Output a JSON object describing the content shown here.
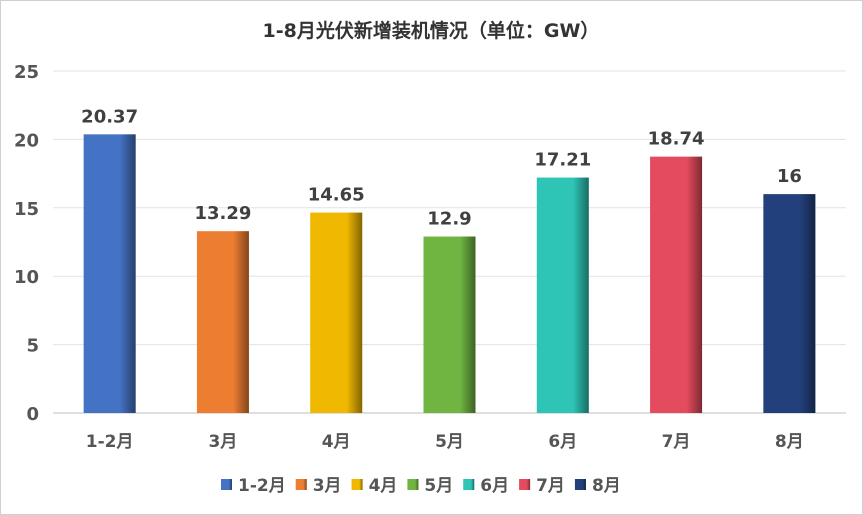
{
  "chart_data": {
    "type": "bar",
    "title": "1-8月光伏新增装机情况（单位：GW）",
    "categories": [
      "1-2月",
      "3月",
      "4月",
      "5月",
      "6月",
      "7月",
      "8月"
    ],
    "values": [
      20.37,
      13.29,
      14.65,
      12.9,
      17.21,
      18.74,
      16
    ],
    "labels": [
      "20.37",
      "13.29",
      "14.65",
      "12.9",
      "17.21",
      "18.74",
      "16"
    ],
    "colors": [
      "#4472C4",
      "#ED7D31",
      "#F0B800",
      "#70B541",
      "#2EC4B6",
      "#E54B5E",
      "#22407C"
    ],
    "ylim": [
      0,
      25
    ],
    "yticks": [
      "0",
      "5",
      "10",
      "15",
      "20",
      "25"
    ],
    "grid": true,
    "legend": "bottom"
  }
}
